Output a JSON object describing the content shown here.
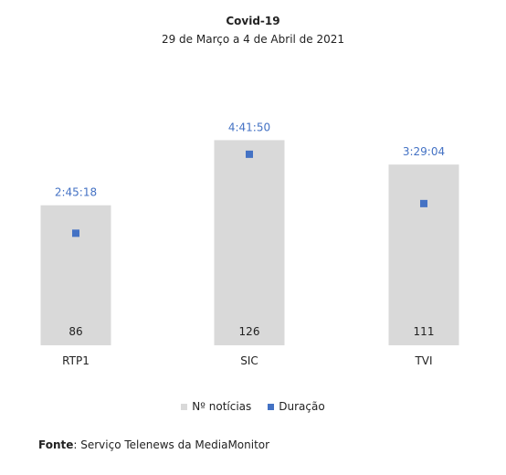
{
  "chart_data": {
    "type": "bar",
    "title": "Covid-19",
    "subtitle": "29 de Março a 4 de Abril de 2021",
    "categories": [
      "RTP1",
      "SIC",
      "TVI"
    ],
    "series": [
      {
        "name": "Nº notícias",
        "type": "bar",
        "color": "#d9d9d9",
        "values": [
          86,
          126,
          111
        ],
        "labels": [
          "86",
          "126",
          "111"
        ]
      },
      {
        "name": "Duração",
        "type": "scatter",
        "color": "#4472c4",
        "values_seconds": [
          9918,
          16910,
          12544
        ],
        "labels": [
          "2:45:18",
          "4:41:50",
          "3:29:04"
        ]
      }
    ],
    "ylim_bars": [
      0,
      170
    ],
    "ylim_duration_seconds": [
      0,
      24500
    ],
    "legend_position": "bottom",
    "grid": false
  },
  "source": {
    "label": "Fonte",
    "text": ": Serviço Telenews da MediaMonitor"
  }
}
